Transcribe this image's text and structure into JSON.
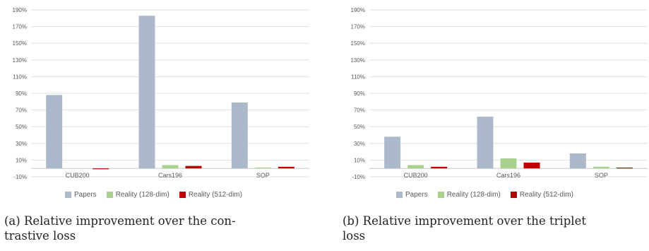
{
  "chart_data": [
    {
      "type": "bar",
      "categories": [
        "CUB200",
        "Cars196",
        "SOP"
      ],
      "series": [
        {
          "name": "Papers",
          "values": [
            88,
            183,
            79
          ],
          "color": "#acb9ca"
        },
        {
          "name": "Reality (128-dim)",
          "values": [
            0,
            4,
            1
          ],
          "color": "#a9d18e"
        },
        {
          "name": "Reality (512-dim)",
          "values": [
            -1,
            3,
            2
          ],
          "color": "#c00000"
        }
      ],
      "y_ticks": [
        "-10%",
        "10%",
        "30%",
        "50%",
        "70%",
        "90%",
        "110%",
        "130%",
        "150%",
        "170%",
        "190%"
      ],
      "ylim": [
        -10,
        190
      ],
      "grid": true,
      "legend_position": "bottom",
      "caption": "(a) Relative improvement over the contrastive loss",
      "caption_lines": [
        "(a) Relative improvement over the con-",
        "trastive loss"
      ]
    },
    {
      "type": "bar",
      "categories": [
        "CUB200",
        "Cars196",
        "SOP"
      ],
      "series": [
        {
          "name": "Papers",
          "values": [
            38,
            62,
            18
          ],
          "color": "#acb9ca"
        },
        {
          "name": "Reality (128-dim)",
          "values": [
            4,
            12,
            2
          ],
          "color": "#a9d18e"
        },
        {
          "name": "Reality (512-dim)",
          "values": [
            2,
            7,
            1
          ],
          "color": "#c00000"
        }
      ],
      "y_ticks": [
        "-10%",
        "10%",
        "30%",
        "50%",
        "70%",
        "90%",
        "110%",
        "130%",
        "150%",
        "170%",
        "190%"
      ],
      "ylim": [
        -10,
        190
      ],
      "grid": true,
      "legend_position": "bottom",
      "caption": "(b) Relative improvement over the triplet loss",
      "caption_lines": [
        "(b) Relative improvement over the triplet",
        "loss"
      ]
    }
  ]
}
